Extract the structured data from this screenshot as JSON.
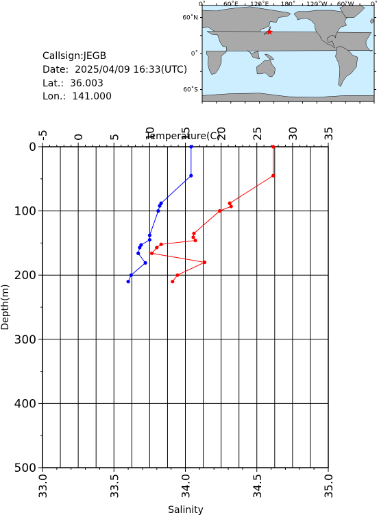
{
  "info": {
    "callsign_label": "Callsign:",
    "callsign": "JEGB",
    "date_label": "Date:",
    "date": "2025/04/09 16:33(UTC)",
    "lat_label": "Lat.:",
    "lat": "36.003",
    "lon_label": "Lon.:",
    "lon": "141.000"
  },
  "map": {
    "top_ticks": [
      "0˚",
      "60˚E",
      "120˚E",
      "180˚",
      "120˚W",
      "60˚W",
      "0˚"
    ],
    "lat_ticks": [
      "60˚N",
      "0˚",
      "60˚S"
    ],
    "ocean_color": "#cceeff",
    "land_color": "#a9a9a9",
    "marker_icon": "red-star-icon",
    "marker_color": "#ff0000"
  },
  "chart_data": {
    "type": "line",
    "xlabel_top": "Temperature(C)",
    "xlabel_bottom": "Salinity",
    "ylabel": "Depth(m)",
    "top_axis": {
      "min": -5,
      "max": 35,
      "ticks": [
        "-5",
        "0",
        "5",
        "10",
        "15",
        "20",
        "25",
        "30",
        "35"
      ]
    },
    "bottom_axis": {
      "min": 33.0,
      "max": 35.0,
      "ticks": [
        "33.0",
        "33.5",
        "34.0",
        "34.5",
        "35.0"
      ]
    },
    "y_axis": {
      "min": 0,
      "max": 500,
      "inverted": true,
      "ticks": [
        "0",
        "100",
        "200",
        "300",
        "400",
        "500"
      ]
    },
    "grid": true,
    "series": [
      {
        "axis": "bottom",
        "color": "#0000ff",
        "points": [
          [
            34.04,
            0
          ],
          [
            34.04,
            45
          ],
          [
            33.83,
            88
          ],
          [
            33.82,
            92
          ],
          [
            33.81,
            100
          ],
          [
            33.75,
            138
          ],
          [
            33.75,
            145
          ],
          [
            33.69,
            153
          ],
          [
            33.68,
            157
          ],
          [
            33.67,
            166
          ],
          [
            33.72,
            181
          ],
          [
            33.62,
            200
          ],
          [
            33.6,
            210
          ]
        ]
      },
      {
        "axis": "top",
        "color": "#ff0000",
        "points": [
          [
            27.3,
            0
          ],
          [
            27.3,
            45
          ],
          [
            21.2,
            88
          ],
          [
            21.4,
            93
          ],
          [
            19.8,
            100
          ],
          [
            16.2,
            135
          ],
          [
            16.1,
            141
          ],
          [
            16.4,
            146
          ],
          [
            11.6,
            152
          ],
          [
            11.0,
            157
          ],
          [
            10.3,
            166
          ],
          [
            17.7,
            180
          ],
          [
            13.9,
            200
          ],
          [
            13.2,
            210
          ]
        ]
      }
    ]
  }
}
